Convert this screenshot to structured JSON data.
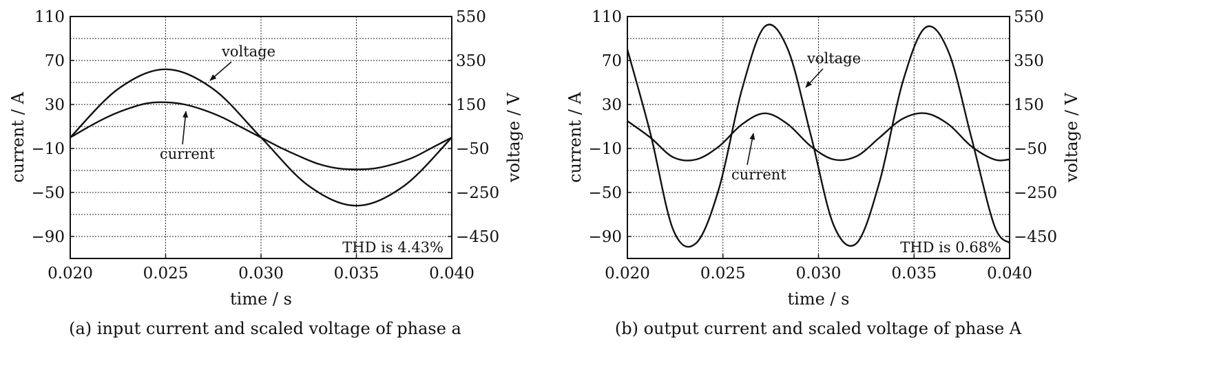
{
  "chart_data": [
    {
      "type": "line",
      "caption": "(a) input current and scaled voltage of phase a",
      "xlabel": "time / s",
      "ylabel_left": "current / A",
      "ylabel_right": "voltage / V",
      "xlim": [
        0.02,
        0.04
      ],
      "ylim_left": [
        -110,
        110
      ],
      "ylim_right": [
        -550,
        550
      ],
      "xticks": [
        "0.020",
        "0.025",
        "0.030",
        "0.035",
        "0.040"
      ],
      "yticks_left": [
        "110",
        "70",
        "30",
        "−10",
        "−50",
        "−90"
      ],
      "yticks_right": [
        "550",
        "350",
        "150",
        "−50",
        "−250",
        "−450"
      ],
      "grid": true,
      "annotation_thd": "THD is 4.43%",
      "series": [
        {
          "name": "voltage",
          "axis": "right",
          "x": [
            0.02,
            0.0225,
            0.025,
            0.0275,
            0.03,
            0.0325,
            0.035,
            0.0375,
            0.04
          ],
          "y": [
            0,
            220,
            310,
            220,
            0,
            -220,
            -310,
            -220,
            0
          ]
        },
        {
          "name": "current",
          "axis": "left",
          "x": [
            0.02,
            0.021,
            0.022,
            0.023,
            0.024,
            0.025,
            0.026,
            0.027,
            0.028,
            0.029,
            0.03,
            0.031,
            0.032,
            0.033,
            0.034,
            0.035,
            0.036,
            0.037,
            0.038,
            0.039,
            0.04
          ],
          "y": [
            0,
            10,
            19,
            26,
            31,
            32,
            30,
            25,
            18,
            9,
            0,
            -9,
            -17,
            -24,
            -28,
            -29,
            -28,
            -24,
            -18,
            -9,
            0
          ]
        }
      ],
      "labels": {
        "voltage": "voltage",
        "current": "current"
      }
    },
    {
      "type": "line",
      "caption": "(b) output current and scaled voltage of phase A",
      "xlabel": "time / s",
      "ylabel_left": "current / A",
      "ylabel_right": "voltage / V",
      "xlim": [
        0.02,
        0.04
      ],
      "ylim_left": [
        -110,
        110
      ],
      "ylim_right": [
        -550,
        550
      ],
      "xticks": [
        "0.020",
        "0.025",
        "0.030",
        "0.035",
        "0.040"
      ],
      "yticks_left": [
        "110",
        "70",
        "30",
        "−10",
        "−50",
        "−90"
      ],
      "yticks_right": [
        "550",
        "350",
        "150",
        "−50",
        "−250",
        "−450"
      ],
      "grid": true,
      "annotation_thd": "THD is 0.68%",
      "series": [
        {
          "name": "voltage",
          "axis": "right",
          "x": [
            0.02,
            0.0212,
            0.0224,
            0.0236,
            0.0248,
            0.026,
            0.0272,
            0.0284,
            0.0296,
            0.0308,
            0.032,
            0.0332,
            0.0344,
            0.0356,
            0.0368,
            0.038,
            0.0392,
            0.04
          ],
          "y": [
            400,
            20,
            -420,
            -480,
            -230,
            220,
            505,
            400,
            10,
            -400,
            -480,
            -200,
            250,
            500,
            390,
            0,
            -400,
            -480
          ]
        },
        {
          "name": "current",
          "axis": "left",
          "x": [
            0.02,
            0.0212,
            0.0224,
            0.0236,
            0.0248,
            0.026,
            0.0272,
            0.0284,
            0.0296,
            0.0308,
            0.032,
            0.0332,
            0.0344,
            0.0356,
            0.0368,
            0.038,
            0.0392,
            0.04
          ],
          "y": [
            15,
            0,
            -18,
            -20,
            -8,
            12,
            22,
            12,
            -8,
            -20,
            -17,
            0,
            17,
            22,
            12,
            -8,
            -20,
            -20
          ]
        }
      ],
      "labels": {
        "voltage": "voltage",
        "current": "current"
      }
    }
  ]
}
